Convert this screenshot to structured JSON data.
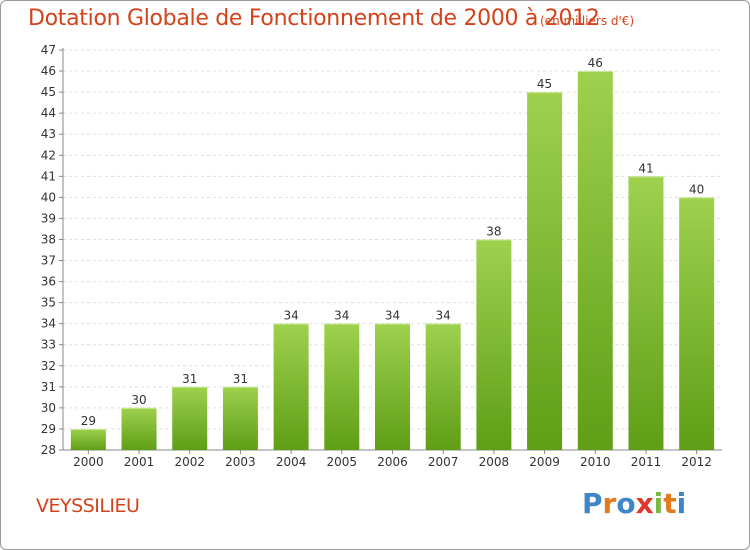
{
  "header": {
    "title": "Dotation Globale de Fonctionnement de 2000 à 2012",
    "unit": "(en milliers d'€)"
  },
  "footer": {
    "location": "VEYSSILIEU",
    "logo": "Proxiti"
  },
  "colors": {
    "title": "#d4421a",
    "bar_top": "#9ed14e",
    "bar_bottom": "#5f9e16",
    "grid": "#dddddd",
    "logo_letters": [
      "#3f86c9",
      "#e47a1c",
      "#3f86c9",
      "#e4362a",
      "#7cb840",
      "#e47a1c",
      "#3f86c9"
    ]
  },
  "chart_data": {
    "type": "bar",
    "categories": [
      "2000",
      "2001",
      "2002",
      "2003",
      "2004",
      "2005",
      "2006",
      "2007",
      "2008",
      "2009",
      "2010",
      "2011",
      "2012"
    ],
    "values": [
      29,
      30,
      31,
      31,
      34,
      34,
      34,
      34,
      38,
      45,
      46,
      41,
      40
    ],
    "ylim": [
      28,
      47
    ],
    "yticks": [
      28,
      29,
      30,
      31,
      32,
      33,
      34,
      35,
      36,
      37,
      38,
      39,
      40,
      41,
      42,
      43,
      44,
      45,
      46,
      47
    ],
    "title": "Dotation Globale de Fonctionnement de 2000 à 2012",
    "xlabel": "",
    "ylabel": "",
    "grid": true,
    "legend": "none"
  }
}
